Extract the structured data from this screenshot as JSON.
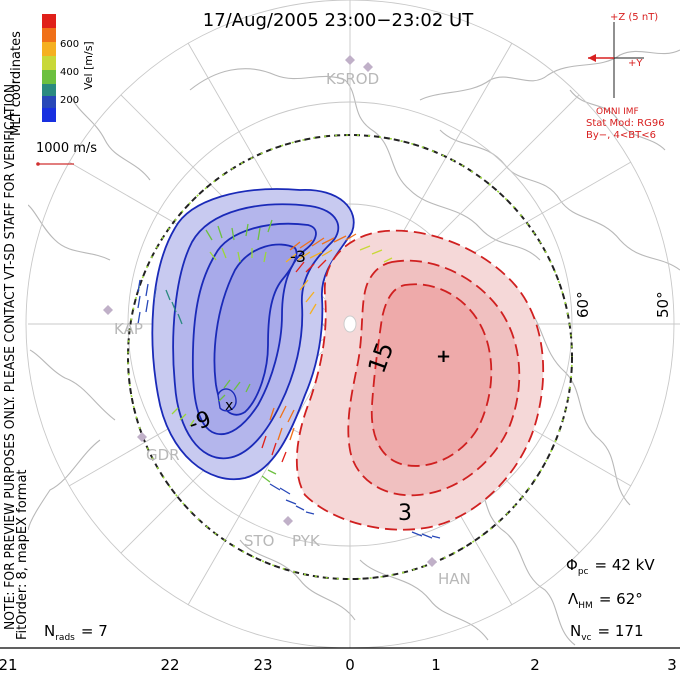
{
  "title": "17/Aug/2005 23:00−23:02 UT",
  "side_note": "NOTE: FOR PREVIEW PURPOSES ONLY. PLEASE CONTACT VT-SD STAFF FOR VERIFICATION.",
  "side_fit": "FitOrder: 8,  mapEX format",
  "coords_label": "MLT coordinates",
  "colorbar": {
    "label": "Vel [m/s]",
    "ticks": [
      "600",
      "400",
      "200"
    ],
    "colors": [
      "#e0201a",
      "#f07018",
      "#f5b020",
      "#c8d838",
      "#6cc040",
      "#2a8a80",
      "#2848b8",
      "#1830e0"
    ]
  },
  "ref_vector": {
    "label": "1000 m/s",
    "color": "#d03030"
  },
  "imf": {
    "z_label": "+Z (5 nT)",
    "y_label": "+Y",
    "source": "OMNI IMF",
    "model": "Stat Mod: RG96",
    "condition": "By−, 4<BT<6",
    "color": "#d82020"
  },
  "lat_labels": [
    "60°",
    "50°"
  ],
  "mlt_labels": [
    "21",
    "22",
    "23",
    "0",
    "1",
    "2",
    "3"
  ],
  "stations": [
    "KSROD",
    "KAP",
    "GDR",
    "STO",
    "PYK",
    "HAN"
  ],
  "contours": {
    "negative_labels": [
      "-9",
      "-3"
    ],
    "positive_labels": [
      "15",
      "3"
    ],
    "negative_color": "#1a2ab8",
    "positive_color": "#d02020"
  },
  "stats": {
    "phi_symbol": "Φ",
    "phi_sub": "pc",
    "phi_value": "= 42 kV",
    "lambda_symbol": "Λ",
    "lambda_sub": "HM",
    "lambda_value": "= 62°",
    "nvc_symbol": "N",
    "nvc_sub": "vc",
    "nvc_value": "= 171",
    "nrads_symbol": "N",
    "nrads_sub": "rads",
    "nrads_value": "= 7"
  }
}
